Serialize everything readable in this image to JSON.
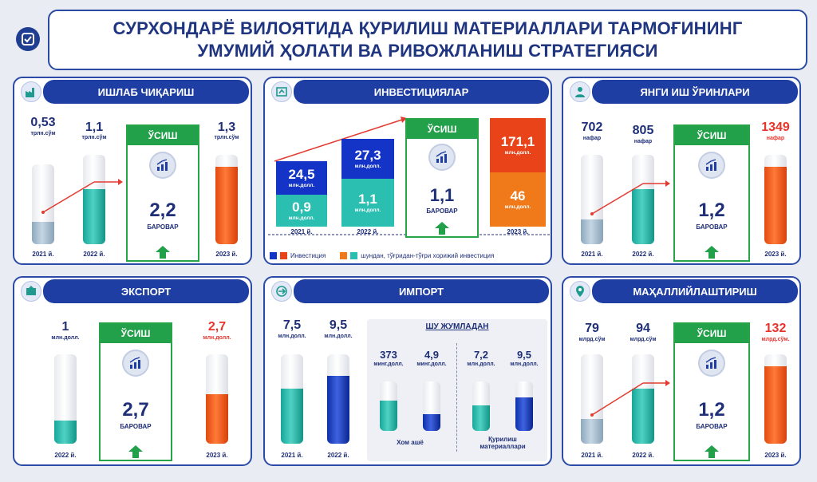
{
  "header": {
    "title_line1": "СУРХОНДАРЁ ВИЛОЯТИДА ҚУРИЛИШ МАТЕРИАЛЛАРИ ТАРМОҒИНИНГ",
    "title_line2": "УМУМИЙ ҲОЛАТИ ВА РИВОЖЛАНИШ СТРАТЕГИЯСИ"
  },
  "colors": {
    "navy": "#1e3ea4",
    "green": "#22a04a",
    "red": "#e8342a",
    "teal": "#2bbfb1",
    "orange": "#f07a1a",
    "blue": "#1434c8"
  },
  "production": {
    "title": "ИШЛАБ ЧИҚАРИШ",
    "bars": [
      {
        "value": "0,53",
        "unit": "трлн.сўм",
        "year": "2021 й.",
        "level": 0.28
      },
      {
        "value": "1,1",
        "unit": "трлн.сўм",
        "year": "2022 й.",
        "level": 0.62
      },
      {
        "value": "1,3",
        "unit": "трлн.сўм",
        "year": "2023 й.",
        "level": 0.87
      }
    ],
    "growth": {
      "label": "ЎСИШ",
      "value": "2,2",
      "sub": "БАРОВАР"
    }
  },
  "investment": {
    "title": "ИНВЕСТИЦИЯЛАР",
    "years": [
      {
        "year": "2021 й.",
        "total": "24,5",
        "total_unit": "млн.долл.",
        "fdi": "0,9",
        "fdi_unit": "млн.долл."
      },
      {
        "year": "2022 й.",
        "total": "27,3",
        "total_unit": "млн.долл.",
        "fdi": "1,1",
        "fdi_unit": "млн.долл."
      },
      {
        "year": "2023 й.",
        "total": "171,1",
        "total_unit": "млн.долл.",
        "fdi": "46",
        "fdi_unit": "млн.долл."
      }
    ],
    "growth": {
      "label": "ЎСИШ",
      "value": "1,1",
      "sub": "БАРОВАР"
    },
    "legend": {
      "invest": "Инвестиция",
      "fdi": "шундан, тўғридан-тўғри хорижий инвестиция"
    }
  },
  "jobs": {
    "title": "ЯНГИ ИШ ЎРИНЛАРИ",
    "bars": [
      {
        "value": "702",
        "unit": "нафар",
        "year": "2021 й.",
        "level": 0.28
      },
      {
        "value": "805",
        "unit": "нафар",
        "year": "2022 й.",
        "level": 0.62
      },
      {
        "value": "1349",
        "unit": "нафар",
        "year": "2023 й.",
        "level": 0.87
      }
    ],
    "growth": {
      "label": "ЎСИШ",
      "value": "1,2",
      "sub": "БАРОВАР"
    }
  },
  "export": {
    "title": "ЭКСПОРТ",
    "bars": [
      {
        "value": "1",
        "unit": "млн.долл.",
        "year": "2022 й.",
        "level": 0.26
      },
      {
        "value": "2,7",
        "unit": "млн.долл.",
        "year": "2023 й.",
        "level": 0.55
      }
    ],
    "growth": {
      "label": "ЎСИШ",
      "value": "2,7",
      "sub": "БАРОВАР"
    }
  },
  "import": {
    "title": "ИМПОРТ",
    "bars": [
      {
        "value": "7,5",
        "unit": "млн.долл.",
        "year": "2021 й.",
        "level": 0.62
      },
      {
        "value": "9,5",
        "unit": "млн.долл.",
        "year": "2022 й.",
        "level": 0.76
      }
    ],
    "breakdown_title": "ШУ ЖУМЛАДАН",
    "groups": [
      {
        "label": "Хом ашё",
        "items": [
          {
            "value": "373",
            "unit": "минг.долл.",
            "level": 0.62
          },
          {
            "value": "4,9",
            "unit": "минг.долл.",
            "level": 0.34
          }
        ]
      },
      {
        "label": "Қурилиш материаллари",
        "items": [
          {
            "value": "7,2",
            "unit": "млн.долл.",
            "level": 0.52
          },
          {
            "value": "9,5",
            "unit": "млн.долл.",
            "level": 0.68
          }
        ]
      }
    ]
  },
  "localization": {
    "title": "МАҲАЛЛИЙЛАШТИРИШ",
    "bars": [
      {
        "value": "79",
        "unit": "млрд.сўм",
        "year": "2021 й.",
        "level": 0.28
      },
      {
        "value": "94",
        "unit": "млрд.сўм",
        "year": "2022 й.",
        "level": 0.62
      },
      {
        "value": "132",
        "unit": "млрд.сўм.",
        "year": "2023 й.",
        "level": 0.87
      }
    ],
    "growth": {
      "label": "ЎСИШ",
      "value": "1,2",
      "sub": "БАРОВАР"
    }
  }
}
